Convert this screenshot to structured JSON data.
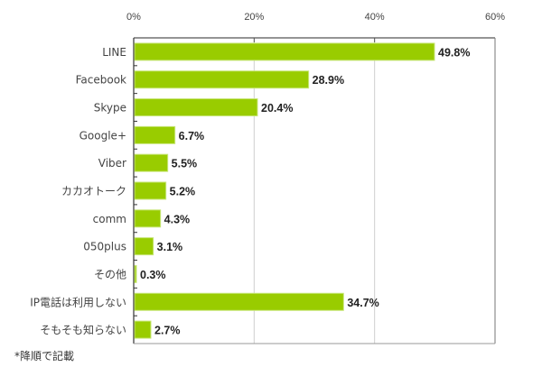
{
  "chart_data": {
    "type": "bar",
    "orientation": "horizontal",
    "title": "",
    "xlabel": "",
    "ylabel": "",
    "categories": [
      "LINE",
      "Facebook",
      "Skype",
      "Google+",
      "Viber",
      "カカオトーク",
      "comm",
      "050plus",
      "その他",
      "IP電話は利用しない",
      "そもそも知らない"
    ],
    "values": [
      49.8,
      28.9,
      20.4,
      6.7,
      5.5,
      5.2,
      4.3,
      3.1,
      0.3,
      34.7,
      2.7
    ],
    "value_labels": [
      "49.8%",
      "28.9%",
      "20.4%",
      "6.7%",
      "5.5%",
      "5.2%",
      "4.3%",
      "3.1%",
      "0.3%",
      "34.7%",
      "2.7%"
    ],
    "xlim": [
      0,
      60
    ],
    "x_ticks": [
      0,
      20,
      40,
      60
    ],
    "x_tick_labels": [
      "0%",
      "20%",
      "40%",
      "60%"
    ],
    "x_axis_position": "top",
    "grid": true,
    "bar_color": "#99cc00",
    "note": "*降順で記載"
  }
}
